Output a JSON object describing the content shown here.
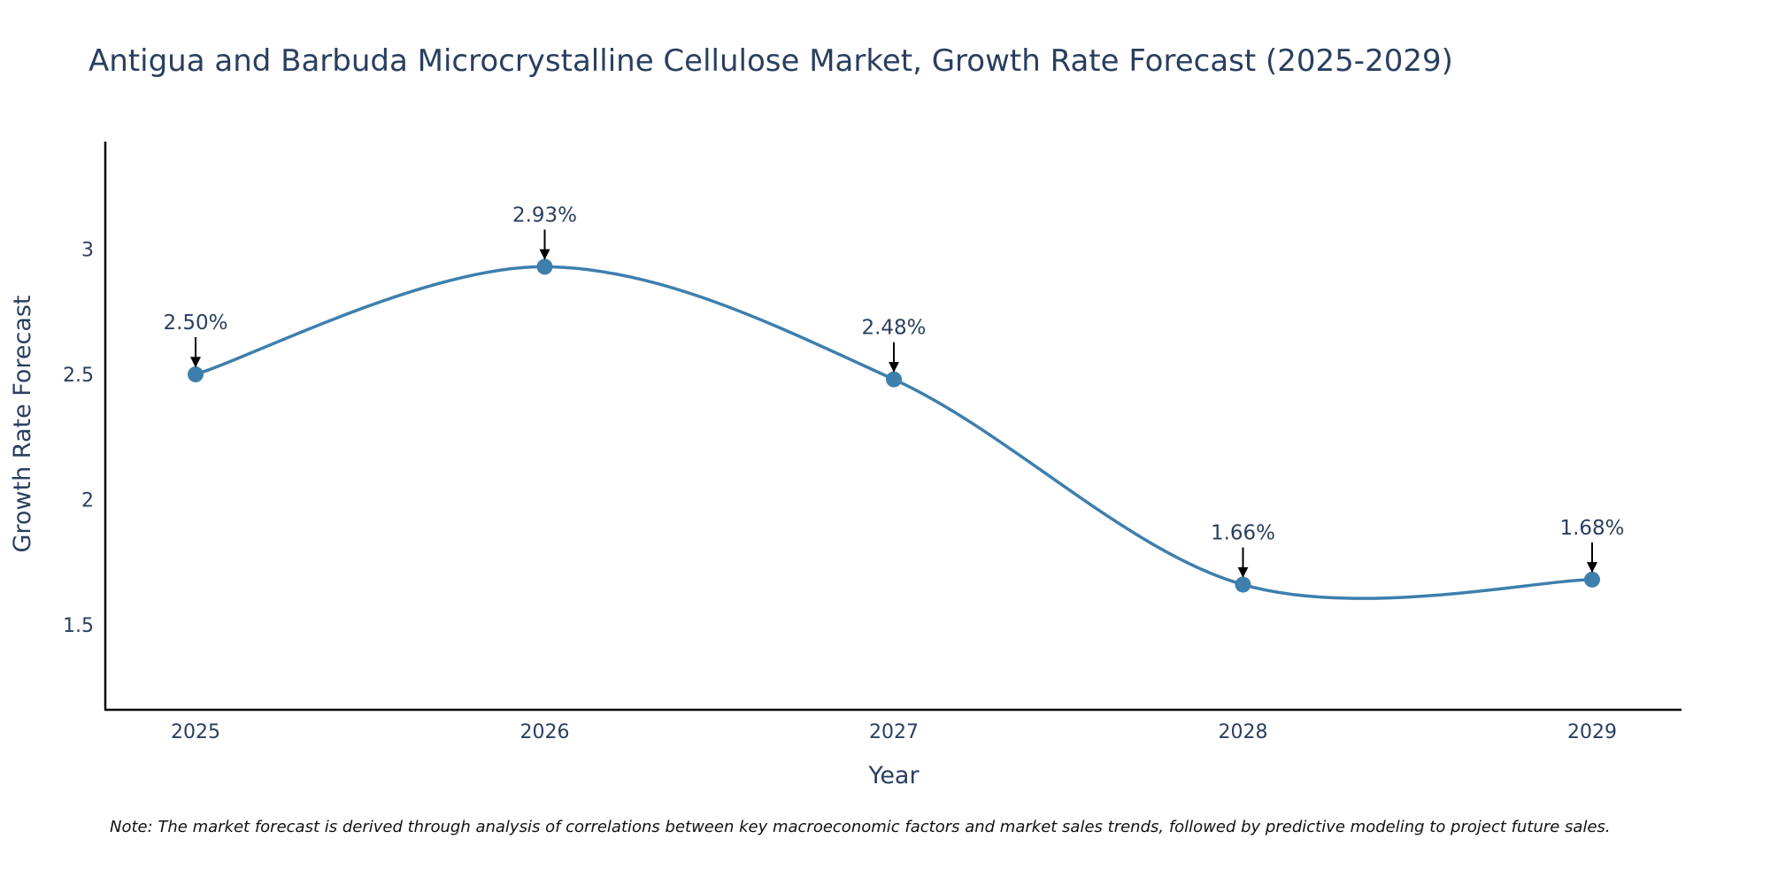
{
  "chart_data": {
    "type": "line",
    "title": "Antigua and Barbuda Microcrystalline Cellulose Market, Growth Rate Forecast (2025-2029)",
    "xlabel": "Year",
    "ylabel": "Growth Rate Forecast",
    "categories": [
      "2025",
      "2026",
      "2027",
      "2028",
      "2029"
    ],
    "values": [
      2.5,
      2.93,
      2.48,
      1.66,
      1.68
    ],
    "data_labels": [
      "2.50%",
      "2.93%",
      "2.48%",
      "1.66%",
      "1.68%"
    ],
    "ylim": [
      1.16,
      3.43
    ],
    "yticks": [
      1.5,
      2,
      2.5,
      3
    ],
    "ytick_labels": [
      "1.5",
      "2",
      "2.5",
      "3"
    ],
    "grid": false,
    "line_shape": "spline",
    "series_color": "#3d7fad",
    "axis_color": "#000000",
    "note": "Note: The market forecast is derived through analysis of correlations between key macroeconomic factors and market sales trends, followed by predictive modeling to project future sales."
  }
}
